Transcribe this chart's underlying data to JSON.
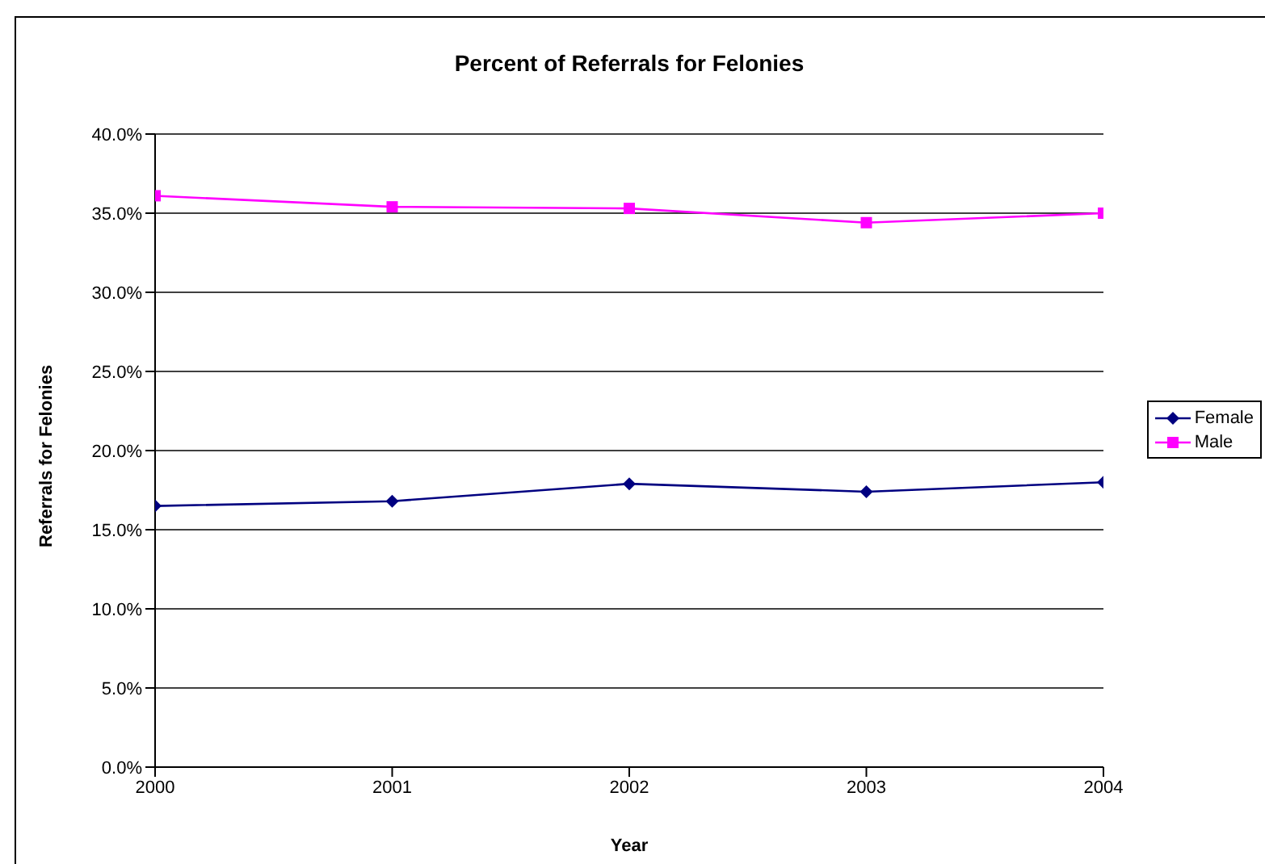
{
  "chart_data": {
    "type": "line",
    "title": "Percent of Referrals for Felonies",
    "xlabel": "Year",
    "ylabel": "Referrals for Felonies",
    "x": [
      2000,
      2001,
      2002,
      2003,
      2004
    ],
    "xlim": [
      2000,
      2004
    ],
    "xticks": [
      2000,
      2001,
      2002,
      2003,
      2004
    ],
    "ylim": [
      0,
      40
    ],
    "yticks": [
      {
        "value": 0,
        "label": "0.0%"
      },
      {
        "value": 5,
        "label": "5.0%"
      },
      {
        "value": 10,
        "label": "10.0%"
      },
      {
        "value": 15,
        "label": "15.0%"
      },
      {
        "value": 20,
        "label": "20.0%"
      },
      {
        "value": 25,
        "label": "25.0%"
      },
      {
        "value": 30,
        "label": "30.0%"
      },
      {
        "value": 35,
        "label": "35.0%"
      },
      {
        "value": 40,
        "label": "40.0%"
      }
    ],
    "grid": "y",
    "legend": "right",
    "line_style": "solid",
    "series": [
      {
        "name": "Female",
        "color": "#000080",
        "marker": "diamond",
        "values": [
          16.5,
          16.8,
          17.9,
          17.4,
          18.0
        ]
      },
      {
        "name": "Male",
        "color": "#ff00ff",
        "marker": "square",
        "values": [
          36.1,
          35.4,
          35.3,
          34.4,
          35.0
        ]
      }
    ]
  }
}
